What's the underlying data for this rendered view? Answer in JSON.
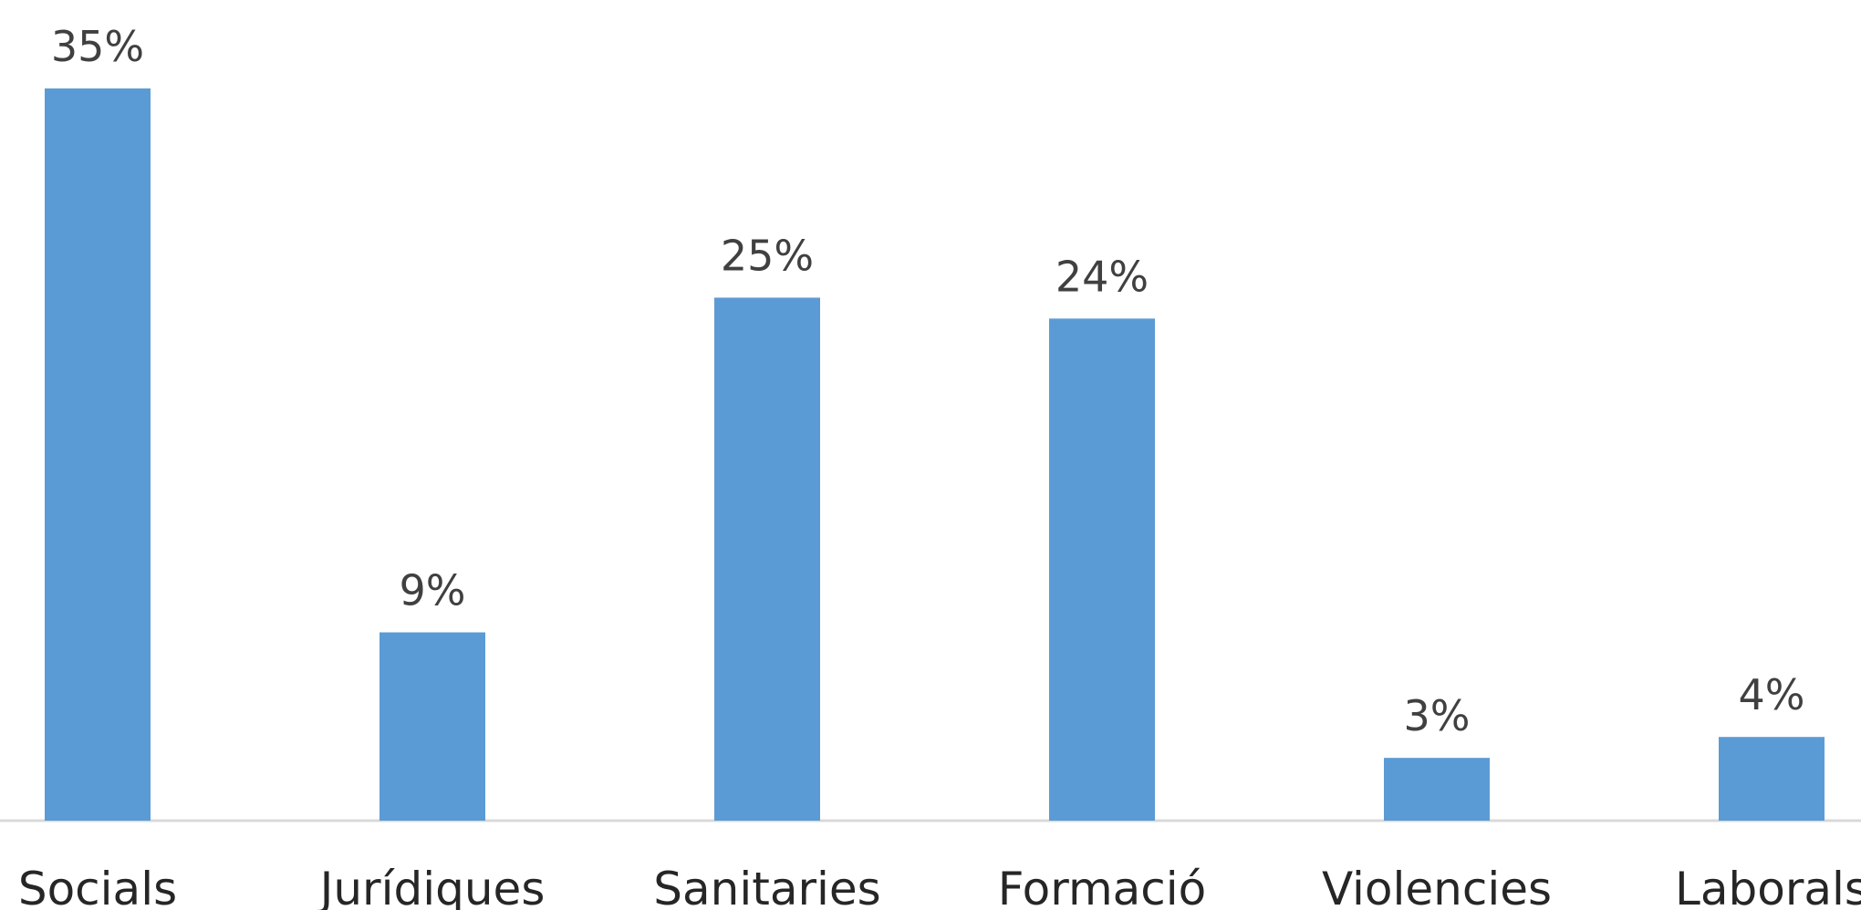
{
  "chart_data": {
    "type": "bar",
    "categories": [
      "Socials",
      "Jurídiques",
      "Sanitaries",
      "Formació",
      "Violencies",
      "Laborals"
    ],
    "values": [
      35,
      9,
      25,
      24,
      3,
      4
    ],
    "data_labels": [
      "35%",
      "9%",
      "25%",
      "24%",
      "3%",
      "4%"
    ],
    "ylim": [
      0,
      35
    ],
    "grid": false,
    "legend": "none",
    "color": "#5b9bd5"
  }
}
